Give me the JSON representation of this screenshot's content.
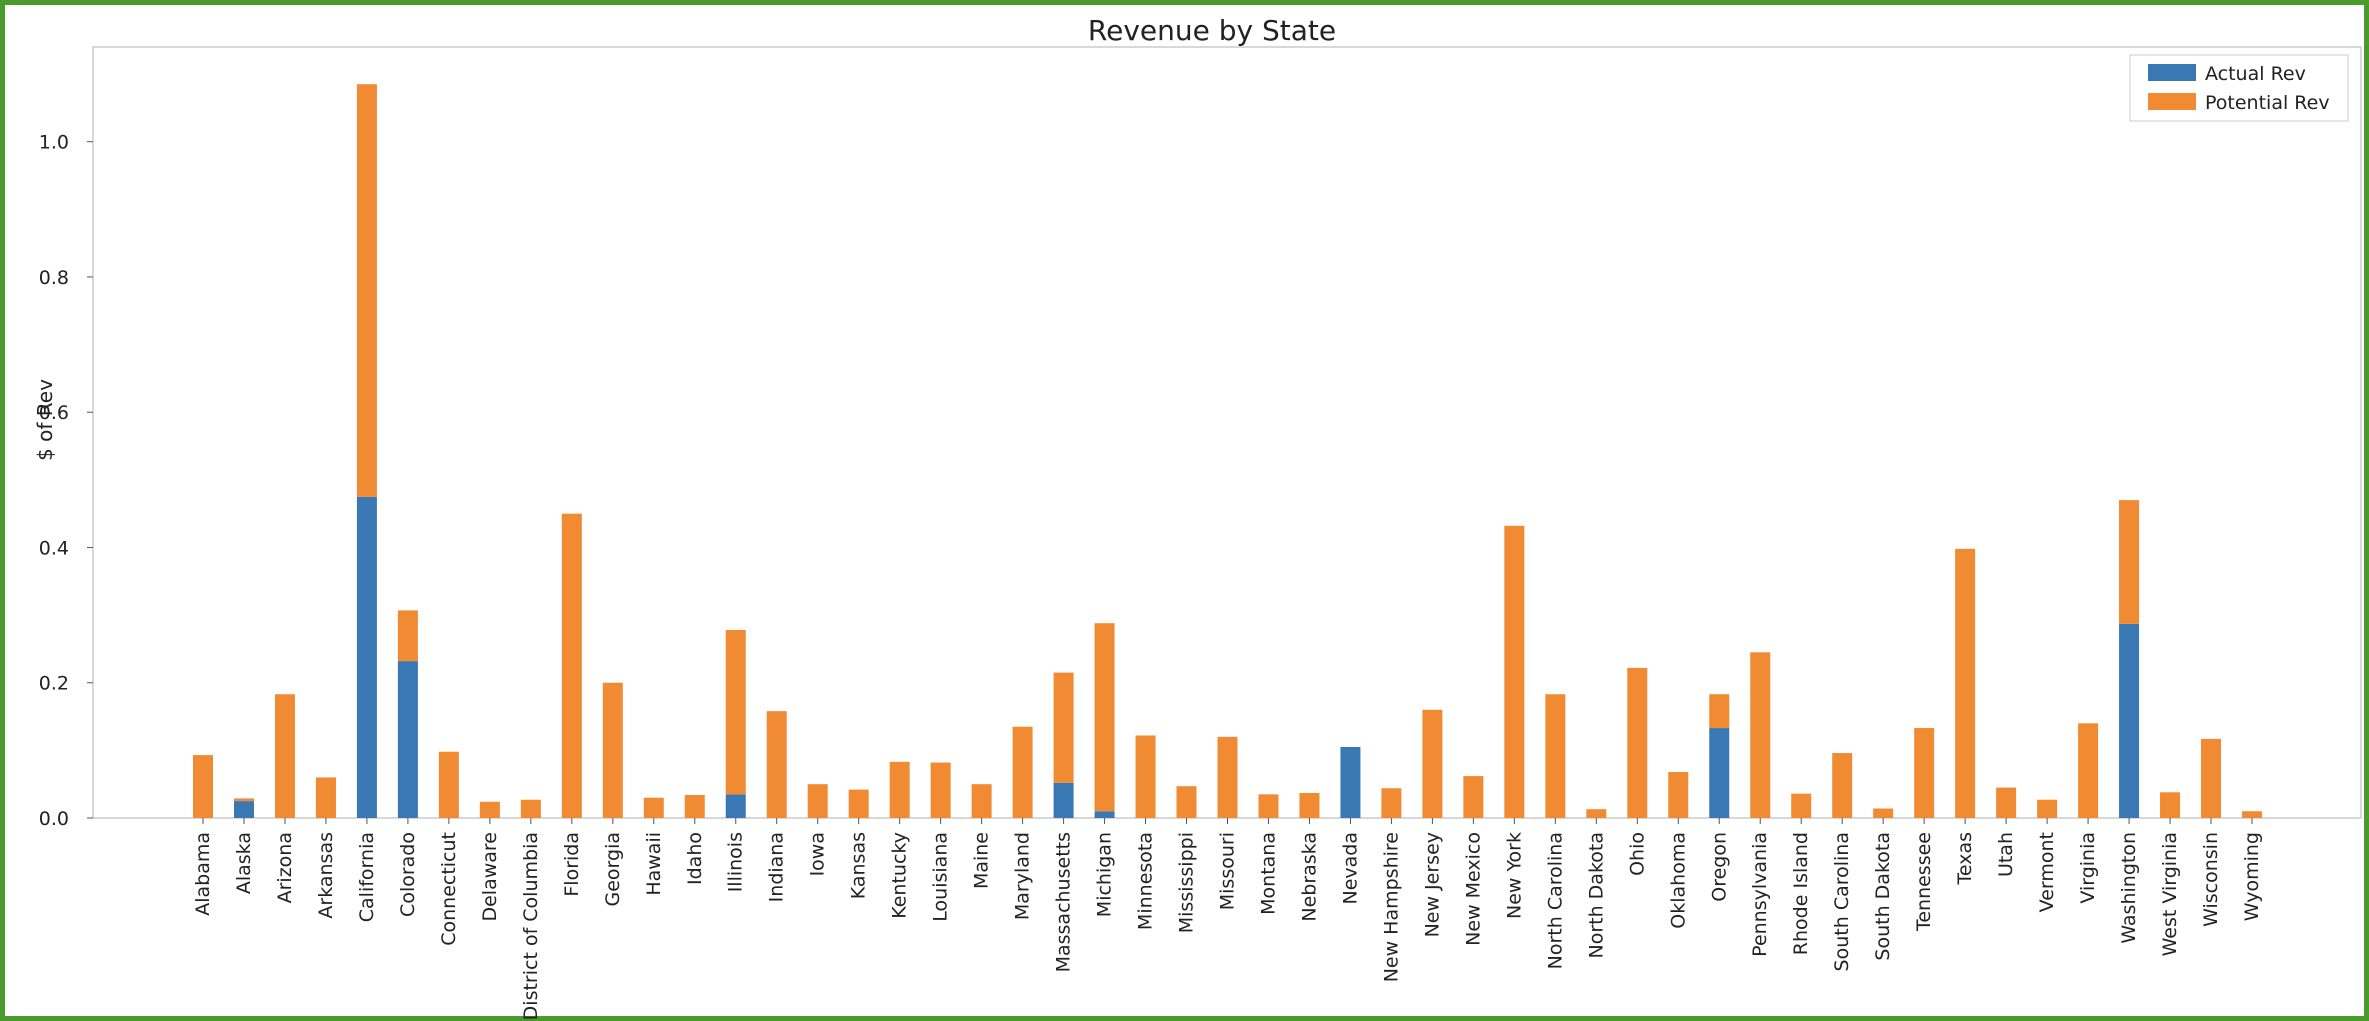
{
  "chart_data": {
    "type": "bar",
    "stacked": true,
    "title": "Revenue by State",
    "xlabel": "",
    "ylabel": "$ of Rev",
    "ylim": [
      0,
      1.14
    ],
    "yticks": [
      "0.0",
      "0.2",
      "0.4",
      "0.6",
      "0.8",
      "1.0"
    ],
    "ytick_values": [
      0,
      0.2,
      0.4,
      0.6,
      0.8,
      1.0
    ],
    "grid": false,
    "legend_position": "top-right",
    "colors": {
      "actual": "#3a78b4",
      "potential": "#f08a33"
    },
    "categories": [
      "Alabama",
      "Alaska",
      "Arizona",
      "Arkansas",
      "California",
      "Colorado",
      "Connecticut",
      "Delaware",
      "District of Columbia",
      "Florida",
      "Georgia",
      "Hawaii",
      "Idaho",
      "Illinois",
      "Indiana",
      "Iowa",
      "Kansas",
      "Kentucky",
      "Louisiana",
      "Maine",
      "Maryland",
      "Massachusetts",
      "Michigan",
      "Minnesota",
      "Mississippi",
      "Missouri",
      "Montana",
      "Nebraska",
      "Nevada",
      "New Hampshire",
      "New Jersey",
      "New Mexico",
      "New York",
      "North Carolina",
      "North Dakota",
      "Ohio",
      "Oklahoma",
      "Oregon",
      "Pennsylvania",
      "Rhode Island",
      "South Carolina",
      "South Dakota",
      "Tennessee",
      "Texas",
      "Utah",
      "Vermont",
      "Virginia",
      "Washington",
      "West Virginia",
      "Wisconsin",
      "Wyoming"
    ],
    "series": [
      {
        "name": "Actual Rev",
        "values": [
          0,
          0.025,
          0,
          0,
          0.475,
          0.232,
          0,
          0,
          0,
          0,
          0,
          0,
          0,
          0.035,
          0,
          0,
          0,
          0,
          0,
          0,
          0,
          0.052,
          0.01,
          0,
          0,
          0,
          0,
          0,
          0.105,
          0,
          0,
          0,
          0,
          0,
          0,
          0,
          0,
          0.133,
          0,
          0,
          0,
          0,
          0,
          0,
          0,
          0,
          0,
          0.287,
          0,
          0,
          0
        ]
      },
      {
        "name": "Potential Rev",
        "values": [
          0.093,
          0.004,
          0.183,
          0.06,
          0.61,
          0.075,
          0.098,
          0.024,
          0.027,
          0.45,
          0.2,
          0.03,
          0.034,
          0.243,
          0.158,
          0.05,
          0.042,
          0.083,
          0.082,
          0.05,
          0.135,
          0.163,
          0.278,
          0.122,
          0.047,
          0.12,
          0.035,
          0.037,
          0,
          0.044,
          0.16,
          0.062,
          0.432,
          0.183,
          0.013,
          0.222,
          0.068,
          0.05,
          0.245,
          0.036,
          0.096,
          0.014,
          0.133,
          0.398,
          0.045,
          0.027,
          0.14,
          0.183,
          0.038,
          0.117,
          0.01
        ]
      }
    ]
  }
}
